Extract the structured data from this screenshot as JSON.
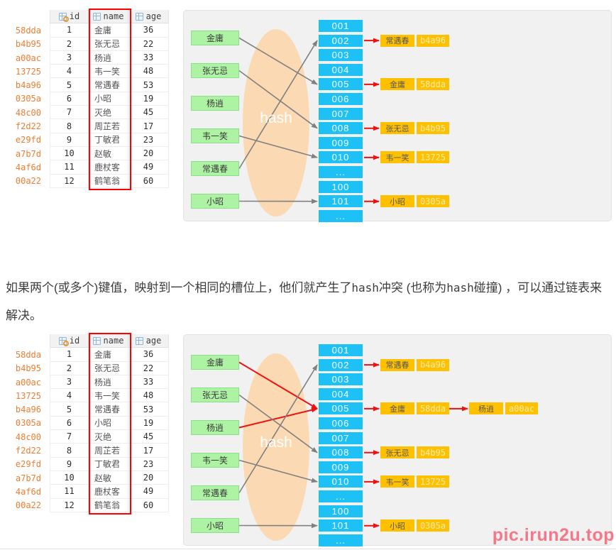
{
  "table": {
    "header": [
      {
        "label": "id",
        "icon": "key-grid-icon"
      },
      {
        "label": "name",
        "icon": "grid-icon"
      },
      {
        "label": "age",
        "icon": "grid-icon"
      }
    ],
    "rows": [
      {
        "hash": "58dda",
        "id": "1",
        "name": "金庸",
        "age": "36"
      },
      {
        "hash": "b4b95",
        "id": "2",
        "name": "张无忌",
        "age": "22"
      },
      {
        "hash": "a00ac",
        "id": "3",
        "name": "杨逍",
        "age": "33"
      },
      {
        "hash": "13725",
        "id": "4",
        "name": "韦一笑",
        "age": "48"
      },
      {
        "hash": "b4a96",
        "id": "5",
        "name": "常遇春",
        "age": "53"
      },
      {
        "hash": "0305a",
        "id": "6",
        "name": "小昭",
        "age": "19"
      },
      {
        "hash": "48c00",
        "id": "7",
        "name": "灭绝",
        "age": "45"
      },
      {
        "hash": "f2d22",
        "id": "8",
        "name": "周芷若",
        "age": "17"
      },
      {
        "hash": "e29fd",
        "id": "9",
        "name": "丁敏君",
        "age": "23"
      },
      {
        "hash": "a7b7d",
        "id": "10",
        "name": "赵敏",
        "age": "20"
      },
      {
        "hash": "4af6d",
        "id": "11",
        "name": "鹿杖客",
        "age": "49"
      },
      {
        "hash": "00a22",
        "id": "12",
        "name": "鹤笔翁",
        "age": "60"
      }
    ]
  },
  "paragraph": {
    "segments": [
      {
        "text": "如果两个(或多个)键值，映射到一个相同的槽位上，他们就产生了",
        "mono": false
      },
      {
        "text": "hash",
        "mono": true
      },
      {
        "text": "冲突 (也称为",
        "mono": false
      },
      {
        "text": "hash",
        "mono": true
      },
      {
        "text": "碰撞) ，可以通过链表来解决。",
        "mono": false
      }
    ]
  },
  "hash_funnel_label": "hash",
  "keys": [
    "金庸",
    "张无忌",
    "杨逍",
    "韦一笑",
    "常遇春",
    "小昭"
  ],
  "slots": [
    "001",
    "002",
    "003",
    "004",
    "005",
    "006",
    "007",
    "008",
    "009",
    "010",
    "...",
    "100",
    "101",
    "..."
  ],
  "diagram1": {
    "arrows": [
      {
        "key": "金庸",
        "slot": "005",
        "color": "gray"
      },
      {
        "key": "张无忌",
        "slot": "008",
        "color": "gray"
      },
      {
        "key": "韦一笑",
        "slot": "010",
        "color": "gray"
      },
      {
        "key": "常遇春",
        "slot": "002",
        "color": "gray"
      },
      {
        "key": "小昭",
        "slot": "101",
        "color": "gray"
      }
    ],
    "buckets": [
      {
        "slot": "002",
        "entries": [
          {
            "name": "常遇春",
            "hash": "b4a96"
          }
        ]
      },
      {
        "slot": "005",
        "entries": [
          {
            "name": "金庸",
            "hash": "58dda"
          }
        ]
      },
      {
        "slot": "008",
        "entries": [
          {
            "name": "张无忌",
            "hash": "b4b95"
          }
        ]
      },
      {
        "slot": "010",
        "entries": [
          {
            "name": "韦一笑",
            "hash": "13725"
          }
        ]
      },
      {
        "slot": "101",
        "entries": [
          {
            "name": "小昭",
            "hash": "0305a"
          }
        ]
      }
    ]
  },
  "diagram2": {
    "arrows": [
      {
        "key": "金庸",
        "slot": "005",
        "color": "red"
      },
      {
        "key": "杨逍",
        "slot": "005",
        "color": "red"
      },
      {
        "key": "张无忌",
        "slot": "008",
        "color": "gray"
      },
      {
        "key": "韦一笑",
        "slot": "010",
        "color": "gray"
      },
      {
        "key": "常遇春",
        "slot": "002",
        "color": "gray"
      },
      {
        "key": "小昭",
        "slot": "101",
        "color": "gray"
      }
    ],
    "buckets": [
      {
        "slot": "002",
        "entries": [
          {
            "name": "常遇春",
            "hash": "b4a96"
          }
        ]
      },
      {
        "slot": "005",
        "entries": [
          {
            "name": "金庸",
            "hash": "58dda"
          },
          {
            "name": "杨逍",
            "hash": "a00ac"
          }
        ]
      },
      {
        "slot": "008",
        "entries": [
          {
            "name": "张无忌",
            "hash": "b4b95"
          }
        ]
      },
      {
        "slot": "010",
        "entries": [
          {
            "name": "韦一笑",
            "hash": "13725"
          }
        ]
      },
      {
        "slot": "101",
        "entries": [
          {
            "name": "小昭",
            "hash": "0305a"
          }
        ]
      }
    ]
  },
  "watermark": "pic.irun2u.top",
  "colors": {
    "slot_fill": "#1ec1f5",
    "key_fill": "#aef3a4",
    "key_border": "#8adf8a",
    "bucket_fill": "#ffc000",
    "funnel_fill": "#fbd9b3",
    "arrow_gray": "#808080",
    "arrow_red": "#ee1111",
    "hash_value_text": "#ed7d31",
    "highlight_box": "#ff0000"
  }
}
